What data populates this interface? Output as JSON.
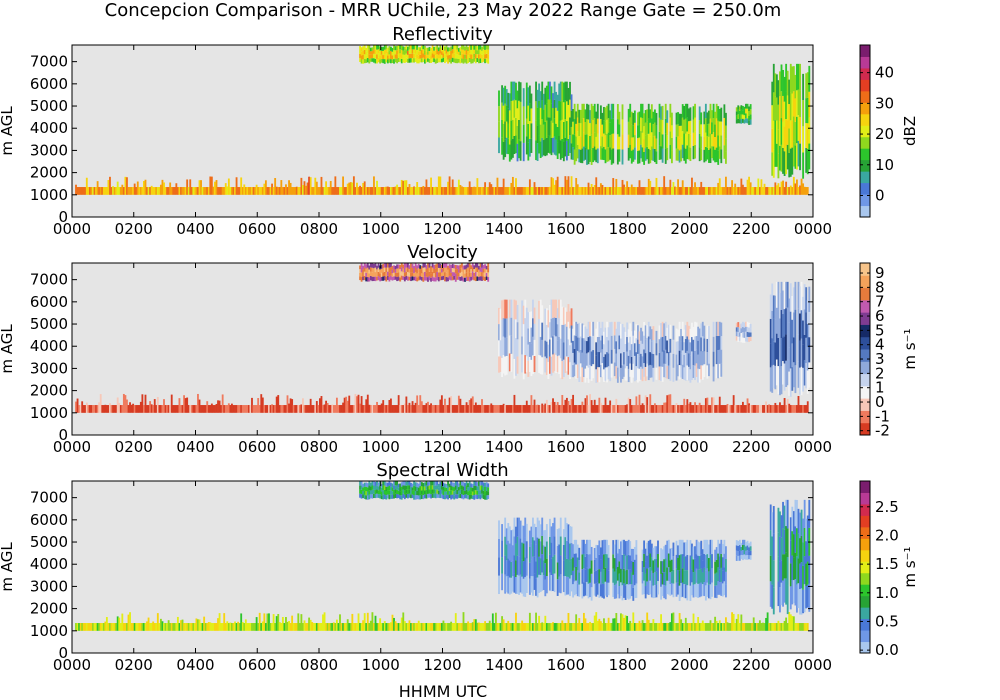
{
  "title": "Concepcion Comparison - MRR UChile, 23 May 2022 Range Gate = 250.0m",
  "xlabel": "HHMM UTC",
  "background_color": "#e5e5e5",
  "chart_data": [
    {
      "type": "heatmap",
      "title": "Reflectivity",
      "ylabel": "m AGL",
      "x_ticks": [
        "0000",
        "0200",
        "0400",
        "0600",
        "0800",
        "1000",
        "1200",
        "1400",
        "1600",
        "1800",
        "2000",
        "2200",
        "0000"
      ],
      "y_ticks": [
        "0",
        "1000",
        "2000",
        "3000",
        "4000",
        "5000",
        "6000",
        "7000"
      ],
      "ylim": [
        0,
        7750
      ],
      "colorbar": {
        "label": "dBZ",
        "ticks": [
          "0",
          "10",
          "20",
          "30",
          "40"
        ],
        "range": [
          -7,
          49
        ],
        "colors": [
          "#a9c7ee",
          "#6f97e6",
          "#4a78d7",
          "#3aa8a0",
          "#27a335",
          "#2cc52c",
          "#8fd81e",
          "#e2ee17",
          "#f6d40f",
          "#f5a00c",
          "#ee6d18",
          "#e33e22",
          "#d22a4e",
          "#b83a96",
          "#7a1d6e"
        ]
      },
      "echo_regions": [
        {
          "t0": 0.1,
          "t1": 23.85,
          "h0": 1000,
          "h1": 1350,
          "level": 28
        },
        {
          "t0": 9.3,
          "t1": 13.5,
          "h0": 6950,
          "h1": 7750,
          "level": 22
        },
        {
          "t0": 13.8,
          "t1": 16.2,
          "h0": 2700,
          "h1": 6100,
          "level": 14
        },
        {
          "t0": 16.2,
          "t1": 21.2,
          "h0": 2500,
          "h1": 5100,
          "level": 17
        },
        {
          "t0": 21.5,
          "t1": 22.0,
          "h0": 4200,
          "h1": 5100,
          "level": 15
        },
        {
          "t0": 22.6,
          "t1": 23.9,
          "h0": 2000,
          "h1": 6900,
          "level": 18
        }
      ]
    },
    {
      "type": "heatmap",
      "title": "Velocity",
      "ylabel": "m AGL",
      "y_unit": "m s⁻¹",
      "x_ticks": [
        "0000",
        "0200",
        "0400",
        "0600",
        "0800",
        "1000",
        "1200",
        "1400",
        "1600",
        "1800",
        "2000",
        "2200",
        "0000"
      ],
      "y_ticks": [
        "0",
        "1000",
        "2000",
        "3000",
        "4000",
        "5000",
        "6000",
        "7000"
      ],
      "ylim": [
        0,
        7750
      ],
      "colorbar": {
        "label": "m s⁻¹",
        "ticks": [
          "-2",
          "-1",
          "0",
          "1",
          "2",
          "3",
          "4",
          "5",
          "6",
          "7",
          "8",
          "9"
        ],
        "range": [
          -2.3,
          9.7
        ],
        "colors": [
          "#d63b22",
          "#ef7a5e",
          "#f7c8b8",
          "#f4f4f4",
          "#c6d4ee",
          "#8fa9db",
          "#5479c0",
          "#2d4f9a",
          "#152a66",
          "#7f3c92",
          "#c15aaf",
          "#e67b3c",
          "#f5a35b",
          "#f7c48a"
        ]
      },
      "echo_regions": [
        {
          "t0": 0.1,
          "t1": 23.85,
          "h0": 1000,
          "h1": 1350,
          "level": -1.6
        },
        {
          "t0": 9.3,
          "t1": 13.5,
          "h0": 6950,
          "h1": 7750,
          "level": 7.6
        },
        {
          "t0": 13.8,
          "t1": 16.2,
          "h0": 2700,
          "h1": 6100,
          "level": 1.4
        },
        {
          "t0": 16.2,
          "t1": 21.2,
          "h0": 2500,
          "h1": 5100,
          "level": 2.2
        },
        {
          "t0": 21.5,
          "t1": 22.0,
          "h0": 4200,
          "h1": 5100,
          "level": 1.6
        },
        {
          "t0": 22.6,
          "t1": 23.9,
          "h0": 2000,
          "h1": 6900,
          "level": 2.8
        }
      ]
    },
    {
      "type": "heatmap",
      "title": "Spectral Width",
      "ylabel": "m AGL",
      "x_ticks": [
        "0000",
        "0200",
        "0400",
        "0600",
        "0800",
        "1000",
        "1200",
        "1400",
        "1600",
        "1800",
        "2000",
        "2200",
        "0000"
      ],
      "y_ticks": [
        "0",
        "1000",
        "2000",
        "3000",
        "4000",
        "5000",
        "6000",
        "7000"
      ],
      "ylim": [
        0,
        7750
      ],
      "colorbar": {
        "label": "m s⁻¹",
        "ticks": [
          "0.0",
          "0.5",
          "1.0",
          "1.5",
          "2.0",
          "2.5"
        ],
        "range": [
          -0.05,
          2.95
        ],
        "colors": [
          "#a9c7ee",
          "#6f97e6",
          "#4a78d7",
          "#3aa8a0",
          "#27a335",
          "#2cc52c",
          "#8fd81e",
          "#e2ee17",
          "#f6d40f",
          "#f5a00c",
          "#ee6d18",
          "#e33e22",
          "#d22a4e",
          "#b83a96",
          "#7a1d6e"
        ]
      },
      "echo_regions": [
        {
          "t0": 0.1,
          "t1": 23.85,
          "h0": 1000,
          "h1": 1350,
          "level": 1.4
        },
        {
          "t0": 9.3,
          "t1": 13.5,
          "h0": 6950,
          "h1": 7750,
          "level": 0.75
        },
        {
          "t0": 13.8,
          "t1": 16.2,
          "h0": 2700,
          "h1": 6100,
          "level": 0.35
        },
        {
          "t0": 16.2,
          "t1": 21.2,
          "h0": 2500,
          "h1": 5100,
          "level": 0.45
        },
        {
          "t0": 21.5,
          "t1": 22.0,
          "h0": 4200,
          "h1": 5100,
          "level": 0.4
        },
        {
          "t0": 22.6,
          "t1": 23.9,
          "h0": 2000,
          "h1": 6900,
          "level": 0.6
        }
      ]
    }
  ]
}
